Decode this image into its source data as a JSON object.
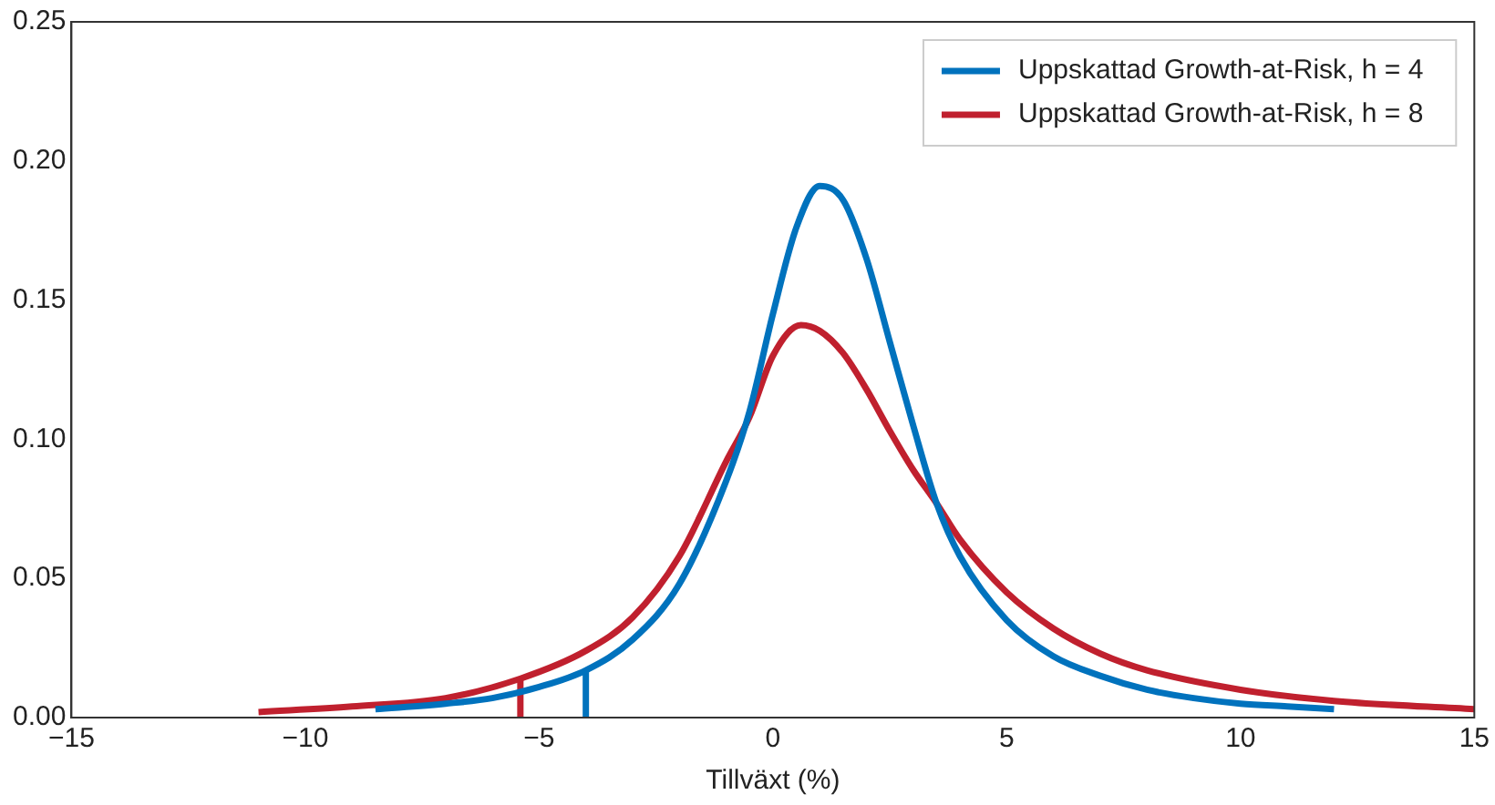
{
  "chart_data": {
    "type": "line",
    "xlabel": "Tillväxt (%)",
    "xlim": [
      -15,
      15
    ],
    "xticks": [
      -15,
      -10,
      -5,
      0,
      5,
      10,
      15
    ],
    "ylim": [
      0,
      0.25
    ],
    "yticks": [
      {
        "value": 0,
        "label": "0.00"
      },
      {
        "value": 0.05,
        "label": "0.05"
      },
      {
        "value": 0.1,
        "label": "0.10"
      },
      {
        "value": 0.15,
        "label": "0.15"
      },
      {
        "value": 0.2,
        "label": "0.20"
      },
      {
        "value": 0.25,
        "label": "0.25"
      }
    ],
    "grid": false,
    "legend": "top right",
    "marker": "none",
    "line_style": "solid",
    "series": [
      {
        "name": "Uppskattad Growth-at-Risk, h = 4",
        "color": "#0072bd",
        "x": [
          -8.5,
          -7,
          -6,
          -5,
          -4,
          -3,
          -2,
          -1,
          -0.5,
          0,
          0.5,
          1,
          1.5,
          2,
          2.5,
          3,
          3.5,
          4,
          5,
          6,
          7,
          8,
          9,
          10,
          11,
          12
        ],
        "values": [
          0.003,
          0.005,
          0.007,
          0.011,
          0.017,
          0.028,
          0.048,
          0.085,
          0.11,
          0.145,
          0.176,
          0.191,
          0.186,
          0.165,
          0.135,
          0.105,
          0.077,
          0.058,
          0.035,
          0.022,
          0.015,
          0.01,
          0.007,
          0.005,
          0.004,
          0.003
        ]
      },
      {
        "name": "Uppskattad Growth-at-Risk, h = 8",
        "color": "#c0202e",
        "x": [
          -11,
          -9,
          -7,
          -5.4,
          -4,
          -3,
          -2,
          -1,
          -0.5,
          0,
          0.6,
          1,
          1.5,
          2,
          2.5,
          3,
          3.5,
          4,
          5,
          6,
          7,
          8,
          10,
          12,
          15
        ],
        "values": [
          0.002,
          0.004,
          0.007,
          0.014,
          0.024,
          0.036,
          0.058,
          0.092,
          0.108,
          0.13,
          0.141,
          0.139,
          0.131,
          0.118,
          0.103,
          0.089,
          0.077,
          0.064,
          0.045,
          0.032,
          0.023,
          0.017,
          0.01,
          0.006,
          0.003
        ]
      },
      {
        "type": "line",
        "color": "#0072bd",
        "x": [
          -4,
          -4
        ],
        "values": [
          0,
          0.017
        ]
      },
      {
        "type": "line",
        "color": "#c0202e",
        "x": [
          -5.4,
          -5.4
        ],
        "values": [
          0,
          0.014
        ]
      }
    ]
  }
}
